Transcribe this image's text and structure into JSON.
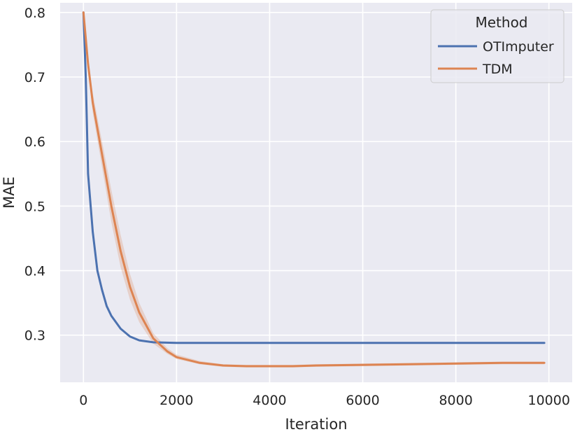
{
  "chart_data": {
    "type": "line",
    "title": "",
    "xlabel": "Iteration",
    "ylabel": "MAE",
    "xlim": [
      -500,
      10500
    ],
    "ylim": [
      0.227,
      0.815
    ],
    "xticks": [
      0,
      2000,
      4000,
      6000,
      8000,
      10000
    ],
    "xtick_labels": [
      "0",
      "2000",
      "4000",
      "6000",
      "8000",
      "10000"
    ],
    "yticks": [
      0.3,
      0.4,
      0.5,
      0.6,
      0.7,
      0.8
    ],
    "ytick_labels": [
      "0.3",
      "0.4",
      "0.5",
      "0.6",
      "0.7",
      "0.8"
    ],
    "grid": true,
    "background": "#eaeaf2",
    "legend": {
      "title": "Method",
      "placement": "top-right"
    },
    "series": [
      {
        "name": "OTImputer",
        "color": "#4c72b0",
        "x": [
          0,
          50,
          100,
          200,
          300,
          400,
          500,
          600,
          800,
          1000,
          1200,
          1500,
          2000,
          3000,
          4000,
          5000,
          6000,
          7000,
          8000,
          9000,
          9900
        ],
        "y": [
          0.8,
          0.7,
          0.55,
          0.46,
          0.4,
          0.37,
          0.345,
          0.33,
          0.31,
          0.298,
          0.292,
          0.289,
          0.288,
          0.288,
          0.288,
          0.288,
          0.288,
          0.288,
          0.288,
          0.288,
          0.288
        ]
      },
      {
        "name": "TDM",
        "color": "#dd8452",
        "x": [
          0,
          100,
          200,
          400,
          600,
          800,
          1000,
          1200,
          1500,
          1800,
          2000,
          2500,
          3000,
          3500,
          4000,
          4500,
          5000,
          6000,
          7000,
          8000,
          9000,
          9900
        ],
        "y": [
          0.8,
          0.72,
          0.66,
          0.58,
          0.5,
          0.43,
          0.375,
          0.335,
          0.295,
          0.275,
          0.266,
          0.257,
          0.253,
          0.252,
          0.252,
          0.252,
          0.253,
          0.254,
          0.255,
          0.256,
          0.257,
          0.257
        ],
        "band_lower": [
          0.8,
          0.71,
          0.645,
          0.56,
          0.475,
          0.405,
          0.355,
          0.32,
          0.287,
          0.271,
          0.263,
          0.255,
          0.251,
          0.25,
          0.25,
          0.25,
          0.251,
          0.252,
          0.253,
          0.254,
          0.255,
          0.255
        ],
        "band_upper": [
          0.8,
          0.73,
          0.675,
          0.6,
          0.525,
          0.455,
          0.395,
          0.35,
          0.303,
          0.28,
          0.27,
          0.26,
          0.255,
          0.254,
          0.254,
          0.254,
          0.255,
          0.256,
          0.257,
          0.258,
          0.259,
          0.259
        ]
      }
    ]
  }
}
